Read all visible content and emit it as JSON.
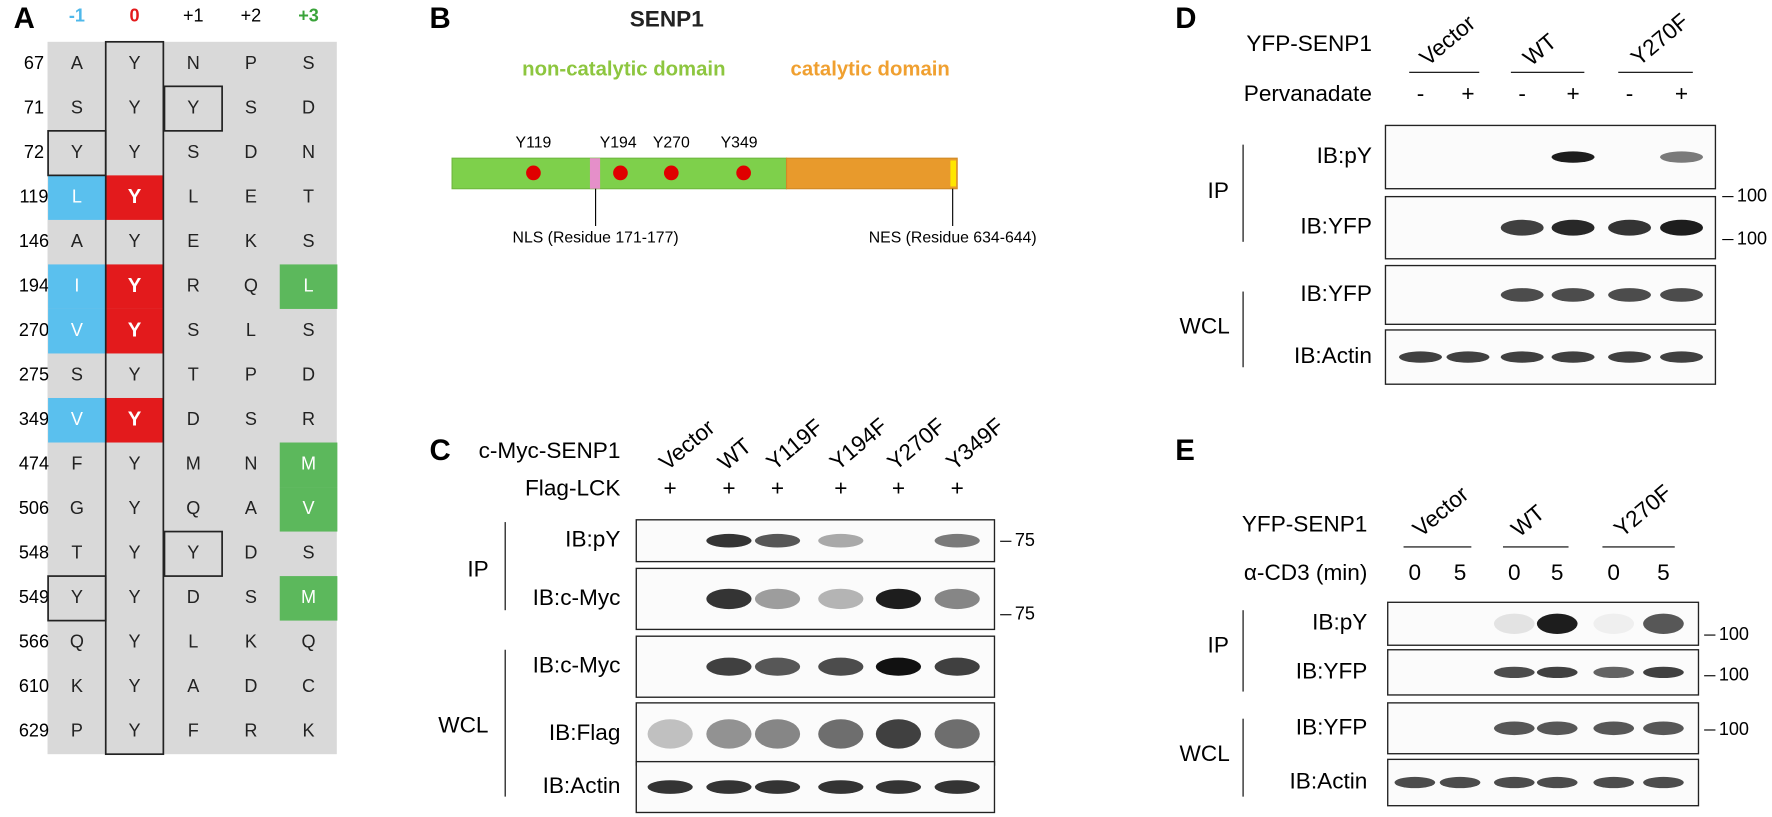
{
  "panel_a": {
    "label": "A",
    "header": [
      "-1",
      "0",
      "+1",
      "+2",
      "+3"
    ],
    "rows": [
      {
        "position": 67,
        "residues": [
          "A",
          "Y",
          "N",
          "P",
          "S"
        ]
      },
      {
        "position": 71,
        "residues": [
          "S",
          "Y",
          "Y",
          "S",
          "D"
        ]
      },
      {
        "position": 72,
        "residues": [
          "Y",
          "Y",
          "S",
          "D",
          "N"
        ]
      },
      {
        "position": 119,
        "residues": [
          "L",
          "Y",
          "L",
          "E",
          "T"
        ]
      },
      {
        "position": 146,
        "residues": [
          "A",
          "Y",
          "E",
          "K",
          "S"
        ]
      },
      {
        "position": 194,
        "residues": [
          "I",
          "Y",
          "R",
          "Q",
          "L"
        ]
      },
      {
        "position": 270,
        "residues": [
          "V",
          "Y",
          "S",
          "L",
          "S"
        ]
      },
      {
        "position": 275,
        "residues": [
          "S",
          "Y",
          "T",
          "P",
          "D"
        ]
      },
      {
        "position": 349,
        "residues": [
          "V",
          "Y",
          "D",
          "S",
          "R"
        ]
      },
      {
        "position": 474,
        "residues": [
          "F",
          "Y",
          "M",
          "N",
          "M"
        ]
      },
      {
        "position": 506,
        "residues": [
          "G",
          "Y",
          "Q",
          "A",
          "V"
        ]
      },
      {
        "position": 548,
        "residues": [
          "T",
          "Y",
          "Y",
          "D",
          "S"
        ]
      },
      {
        "position": 549,
        "residues": [
          "Y",
          "Y",
          "D",
          "S",
          "M"
        ]
      },
      {
        "position": 566,
        "residues": [
          "Q",
          "Y",
          "L",
          "K",
          "Q"
        ]
      },
      {
        "position": 610,
        "residues": [
          "K",
          "Y",
          "A",
          "D",
          "C"
        ]
      },
      {
        "position": 629,
        "residues": [
          "P",
          "Y",
          "F",
          "R",
          "K"
        ]
      }
    ]
  },
  "panel_b": {
    "label": "B",
    "title": "SENP1",
    "domains": [
      "non-catalytic domain",
      "catalytic domain"
    ],
    "sites": [
      "Y119",
      "Y194",
      "Y270",
      "Y349"
    ],
    "nls": "NLS (Residue 171-177)",
    "nes": "NES (Residue 634-644)"
  },
  "panel_c": {
    "label": "C",
    "construct": "c-Myc-SENP1",
    "lanes": [
      "Vector",
      "WT",
      "Y119F",
      "Y194F",
      "Y270F",
      "Y349F"
    ],
    "treatment": "Flag-LCK",
    "treatment_marks": [
      "+",
      "+",
      "+",
      "+",
      "+",
      "+"
    ],
    "groups": [
      "IP",
      "WCL"
    ],
    "blots": [
      "IB:pY",
      "IB:c-Myc",
      "IB:c-Myc",
      "IB:Flag",
      "IB:Actin"
    ],
    "markers": [
      75,
      75
    ]
  },
  "panel_d": {
    "label": "D",
    "construct": "YFP-SENP1",
    "groups_top": [
      "Vector",
      "WT",
      "Y270F"
    ],
    "treatment": "Pervanadate",
    "treatment_marks": [
      "-",
      "+",
      "-",
      "+",
      "-",
      "+"
    ],
    "groups": [
      "IP",
      "WCL"
    ],
    "blots": [
      "IB:pY",
      "IB:YFP",
      "IB:YFP",
      "IB:Actin"
    ],
    "markers": [
      100,
      100
    ]
  },
  "panel_e": {
    "label": "E",
    "construct": "YFP-SENP1",
    "groups_top": [
      "Vector",
      "WT",
      "Y270F"
    ],
    "treatment": "α-CD3 (min)",
    "treatment_marks": [
      "0",
      "5",
      "0",
      "5",
      "0",
      "5"
    ],
    "groups": [
      "IP",
      "WCL"
    ],
    "blots": [
      "IB:pY",
      "IB:YFP",
      "IB:YFP",
      "IB:Actin"
    ],
    "markers": [
      100,
      100,
      100
    ]
  }
}
